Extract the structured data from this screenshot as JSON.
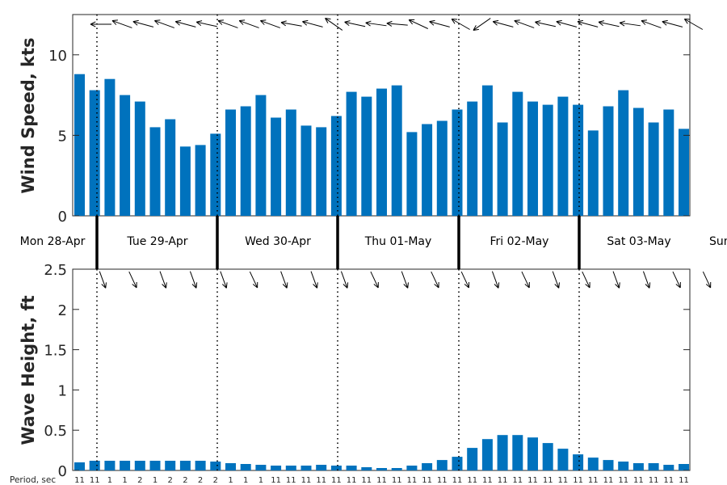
{
  "chart_data": [
    {
      "type": "bar",
      "ylabel": "Wind Speed, kts",
      "ylim": [
        0,
        12.5
      ],
      "yticks": [
        0,
        5,
        10
      ],
      "bar_color": "#0072bd",
      "values": [
        8.8,
        7.8,
        8.5,
        7.5,
        7.1,
        5.5,
        6.0,
        4.3,
        4.4,
        5.1,
        6.6,
        6.8,
        7.5,
        6.1,
        6.6,
        5.6,
        5.5,
        6.2,
        7.7,
        7.4,
        7.9,
        8.1,
        5.2,
        5.7,
        5.9,
        6.6,
        7.1,
        8.1,
        5.8,
        7.7,
        7.1,
        6.9,
        7.4,
        6.9,
        5.3,
        6.8,
        7.8,
        6.7,
        5.8,
        6.6,
        5.4
      ],
      "direction_arrow_angles_deg": [
        180,
        160,
        165,
        160,
        165,
        168,
        160,
        160,
        160,
        170,
        165,
        145,
        168,
        172,
        175,
        155,
        165,
        150,
        215,
        165,
        160,
        168,
        165,
        165,
        168,
        172,
        160,
        165,
        150
      ]
    },
    {
      "type": "bar",
      "ylabel": "Wave Height, ft",
      "ylim": [
        0,
        2.5
      ],
      "yticks": [
        "0",
        "0.5",
        "1",
        "1.5",
        "2",
        "2.5"
      ],
      "bar_color": "#0072bd",
      "values": [
        0.1,
        0.12,
        0.12,
        0.12,
        0.12,
        0.12,
        0.12,
        0.12,
        0.12,
        0.11,
        0.09,
        0.08,
        0.07,
        0.06,
        0.06,
        0.06,
        0.07,
        0.06,
        0.06,
        0.04,
        0.03,
        0.03,
        0.06,
        0.09,
        0.13,
        0.17,
        0.28,
        0.39,
        0.44,
        0.44,
        0.41,
        0.34,
        0.27,
        0.2,
        0.16,
        0.13,
        0.11,
        0.09,
        0.09,
        0.07,
        0.08
      ],
      "direction_arrow_angles_deg": [
        -70,
        -65,
        -70,
        -70,
        -70,
        -65,
        -70,
        -70,
        -70,
        -65,
        -70,
        -65,
        -65,
        -70,
        -65,
        -70,
        -65,
        -70,
        -70,
        -65,
        -65,
        -70,
        -70,
        -70
      ]
    }
  ],
  "days": [
    "Mon 28-Apr",
    "Tue 29-Apr",
    "Wed 30-Apr",
    "Thu 01-May",
    "Fri 02-May",
    "Sat 03-May",
    "Sun"
  ],
  "period": {
    "label": "Period, sec",
    "values": [
      "11",
      "11",
      "1",
      "1",
      "2",
      "1",
      "2",
      "2",
      "2",
      "2",
      "1",
      "1",
      "1",
      "11",
      "11",
      "11",
      "11",
      "11",
      "11",
      "11",
      "11",
      "11",
      "11",
      "11",
      "11",
      "11",
      "11",
      "11",
      "11",
      "11",
      "11",
      "11",
      "11",
      "11",
      "11",
      "11",
      "11",
      "11",
      "11",
      "11",
      "11"
    ]
  }
}
